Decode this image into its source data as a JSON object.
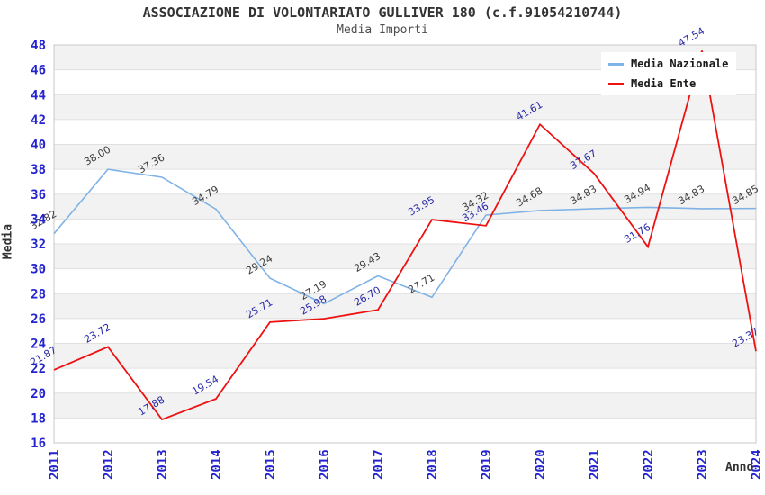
{
  "chart_data": {
    "type": "line",
    "title": "ASSOCIAZIONE DI VOLONTARIATO GULLIVER 180 (c.f.91054210744)",
    "subtitle": "Media Importi",
    "xlabel": "Anno",
    "ylabel": "Media",
    "x": [
      2011,
      2012,
      2013,
      2014,
      2015,
      2016,
      2017,
      2018,
      2019,
      2020,
      2021,
      2022,
      2023,
      2024
    ],
    "ylim": [
      16,
      48
    ],
    "ytick_step": 2,
    "grid": true,
    "band_shading": true,
    "legend_position": "top-right",
    "series": [
      {
        "name": "Media Nazionale",
        "color": "#7fb2e5",
        "label_color": "#3c3c3c",
        "values": [
          32.82,
          38.0,
          37.36,
          34.79,
          29.24,
          27.19,
          29.43,
          27.71,
          34.32,
          34.68,
          34.83,
          34.94,
          34.83,
          34.85
        ]
      },
      {
        "name": "Media Ente",
        "color": "#ee1111",
        "label_color": "#2929a8",
        "values": [
          21.87,
          23.72,
          17.88,
          19.54,
          25.71,
          25.98,
          26.7,
          33.95,
          33.46,
          41.61,
          37.67,
          31.76,
          47.54,
          23.37
        ]
      }
    ],
    "colors": {
      "tick_label": "#2323cf",
      "band": "#f2f2f2",
      "gridline": "#e0e0e0",
      "plot_border": "#c9c9c9"
    }
  }
}
